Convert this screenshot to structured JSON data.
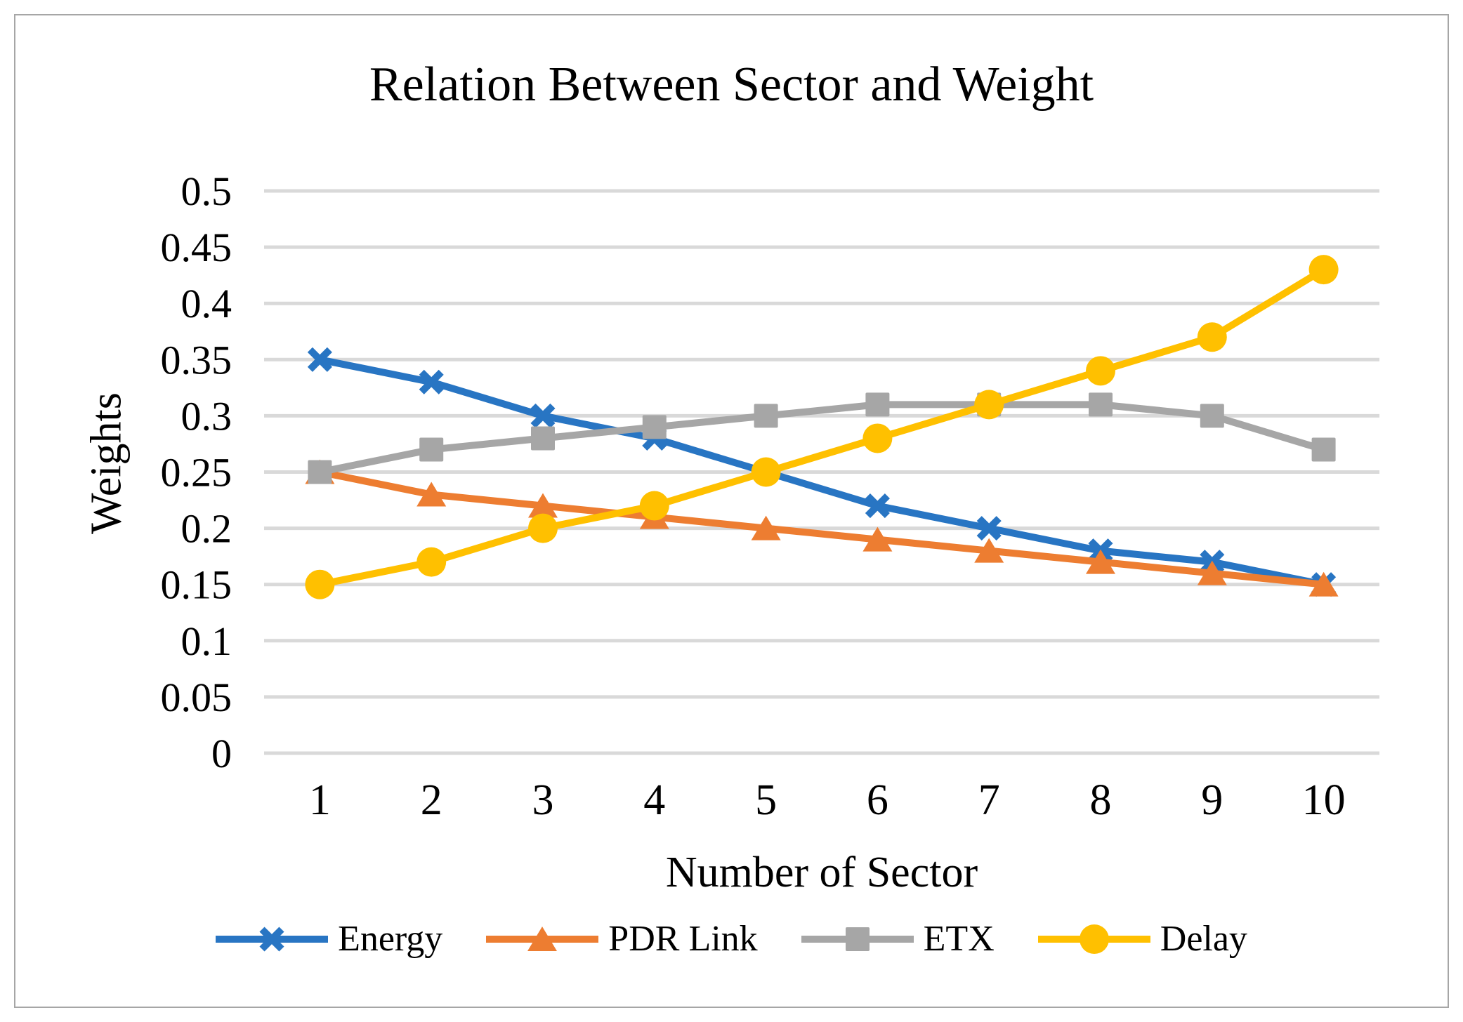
{
  "chart_data": {
    "type": "line",
    "title": "Relation Between Sector and Weight",
    "xlabel": "Number of Sector",
    "ylabel": "Weights",
    "categories": [
      "1",
      "2",
      "3",
      "4",
      "5",
      "6",
      "7",
      "8",
      "9",
      "10"
    ],
    "ylim": [
      0,
      0.5
    ],
    "y_tick_step": 0.05,
    "y_tick_labels": [
      "0",
      "0.05",
      "0.1",
      "0.15",
      "0.2",
      "0.25",
      "0.3",
      "0.35",
      "0.4",
      "0.45",
      "0.5"
    ],
    "grid": true,
    "legend_position": "bottom",
    "series": [
      {
        "name": "Energy",
        "marker": "x",
        "color": "#2875C3",
        "values": [
          0.35,
          0.33,
          0.3,
          0.28,
          0.25,
          0.22,
          0.2,
          0.18,
          0.17,
          0.15
        ]
      },
      {
        "name": "PDR Link",
        "marker": "triangle",
        "color": "#ED7D31",
        "values": [
          0.25,
          0.23,
          0.22,
          0.21,
          0.2,
          0.19,
          0.18,
          0.17,
          0.16,
          0.15
        ]
      },
      {
        "name": "ETX",
        "marker": "square",
        "color": "#A6A6A6",
        "values": [
          0.25,
          0.27,
          0.28,
          0.29,
          0.3,
          0.31,
          0.31,
          0.31,
          0.3,
          0.27
        ]
      },
      {
        "name": "Delay",
        "marker": "circle",
        "color": "#FFC000",
        "values": [
          0.15,
          0.17,
          0.2,
          0.22,
          0.25,
          0.28,
          0.31,
          0.34,
          0.37,
          0.43
        ]
      }
    ],
    "gridline_color": "#D9D9D9",
    "text_color": "#000000",
    "frame_border_color": "#A6A6A6"
  }
}
